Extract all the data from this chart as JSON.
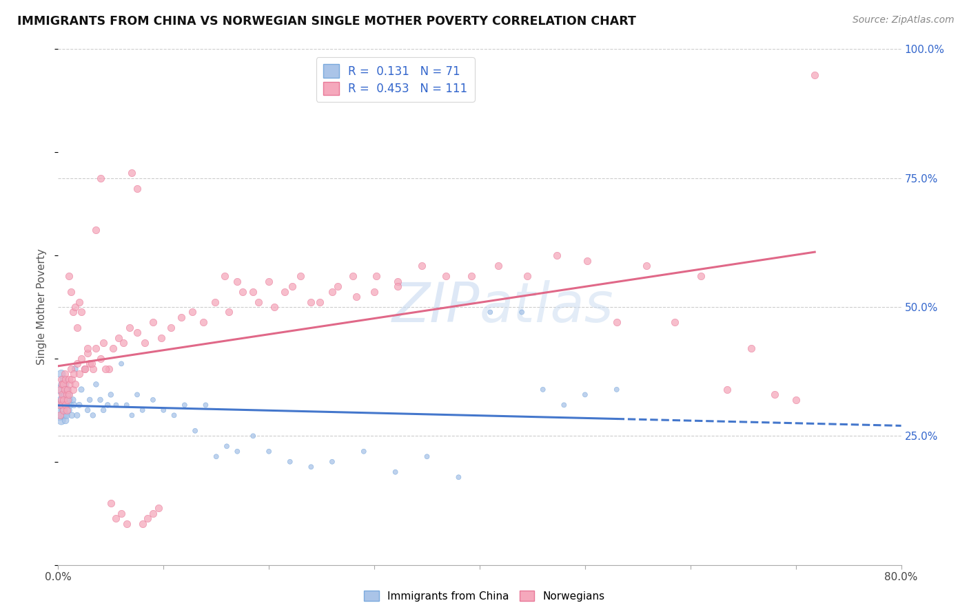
{
  "title": "IMMIGRANTS FROM CHINA VS NORWEGIAN SINGLE MOTHER POVERTY CORRELATION CHART",
  "source": "Source: ZipAtlas.com",
  "ylabel": "Single Mother Poverty",
  "legend_label1": "Immigrants from China",
  "legend_label2": "Norwegians",
  "r1": 0.131,
  "n1": 71,
  "r2": 0.453,
  "n2": 111,
  "color_china_fill": "#aac4e8",
  "color_china_edge": "#7aaadd",
  "color_norway_fill": "#f5a8bc",
  "color_norway_edge": "#e87898",
  "color_china_line": "#4477cc",
  "color_norway_line": "#e06888",
  "color_blue_text": "#3366cc",
  "xlim": [
    0.0,
    0.8
  ],
  "ylim": [
    0.0,
    1.0
  ],
  "china_x": [
    0.001,
    0.002,
    0.002,
    0.003,
    0.003,
    0.003,
    0.004,
    0.004,
    0.004,
    0.005,
    0.005,
    0.005,
    0.006,
    0.006,
    0.007,
    0.007,
    0.007,
    0.008,
    0.008,
    0.009,
    0.009,
    0.01,
    0.01,
    0.011,
    0.012,
    0.013,
    0.014,
    0.015,
    0.016,
    0.018,
    0.02,
    0.022,
    0.025,
    0.028,
    0.03,
    0.033,
    0.036,
    0.04,
    0.043,
    0.047,
    0.05,
    0.055,
    0.06,
    0.065,
    0.07,
    0.075,
    0.08,
    0.09,
    0.1,
    0.11,
    0.12,
    0.13,
    0.14,
    0.15,
    0.16,
    0.17,
    0.185,
    0.2,
    0.22,
    0.24,
    0.26,
    0.29,
    0.32,
    0.35,
    0.38,
    0.41,
    0.44,
    0.46,
    0.48,
    0.5,
    0.53
  ],
  "china_y": [
    0.29,
    0.34,
    0.31,
    0.28,
    0.37,
    0.32,
    0.29,
    0.35,
    0.31,
    0.33,
    0.3,
    0.36,
    0.29,
    0.33,
    0.31,
    0.35,
    0.28,
    0.32,
    0.29,
    0.31,
    0.34,
    0.3,
    0.33,
    0.32,
    0.31,
    0.29,
    0.32,
    0.31,
    0.38,
    0.29,
    0.31,
    0.34,
    0.38,
    0.3,
    0.32,
    0.29,
    0.35,
    0.32,
    0.3,
    0.31,
    0.33,
    0.31,
    0.39,
    0.31,
    0.29,
    0.33,
    0.3,
    0.32,
    0.3,
    0.29,
    0.31,
    0.26,
    0.31,
    0.21,
    0.23,
    0.22,
    0.25,
    0.22,
    0.2,
    0.19,
    0.2,
    0.22,
    0.18,
    0.21,
    0.17,
    0.49,
    0.49,
    0.34,
    0.31,
    0.33,
    0.34
  ],
  "china_sizes": [
    120,
    100,
    90,
    80,
    75,
    70,
    70,
    65,
    65,
    60,
    60,
    55,
    55,
    55,
    50,
    50,
    50,
    50,
    50,
    45,
    45,
    45,
    45,
    40,
    40,
    40,
    40,
    40,
    40,
    35,
    35,
    35,
    35,
    30,
    30,
    30,
    30,
    30,
    30,
    30,
    30,
    25,
    25,
    25,
    25,
    25,
    25,
    25,
    25,
    25,
    25,
    25,
    25,
    25,
    25,
    25,
    25,
    25,
    25,
    25,
    25,
    25,
    25,
    25,
    25,
    25,
    25,
    25,
    25,
    25,
    25
  ],
  "norway_x": [
    0.001,
    0.002,
    0.002,
    0.003,
    0.003,
    0.004,
    0.004,
    0.004,
    0.005,
    0.005,
    0.005,
    0.006,
    0.006,
    0.007,
    0.007,
    0.008,
    0.008,
    0.009,
    0.009,
    0.01,
    0.01,
    0.011,
    0.012,
    0.013,
    0.014,
    0.015,
    0.016,
    0.018,
    0.02,
    0.022,
    0.025,
    0.028,
    0.03,
    0.033,
    0.036,
    0.04,
    0.043,
    0.048,
    0.052,
    0.057,
    0.062,
    0.068,
    0.075,
    0.082,
    0.09,
    0.098,
    0.107,
    0.117,
    0.127,
    0.138,
    0.149,
    0.162,
    0.175,
    0.19,
    0.205,
    0.222,
    0.24,
    0.26,
    0.28,
    0.3,
    0.322,
    0.345,
    0.368,
    0.392,
    0.418,
    0.445,
    0.473,
    0.502,
    0.53,
    0.558,
    0.585,
    0.61,
    0.635,
    0.658,
    0.68,
    0.7,
    0.718,
    0.158,
    0.17,
    0.185,
    0.2,
    0.215,
    0.23,
    0.248,
    0.265,
    0.283,
    0.302,
    0.322,
    0.01,
    0.012,
    0.014,
    0.016,
    0.018,
    0.02,
    0.022,
    0.025,
    0.028,
    0.032,
    0.036,
    0.04,
    0.045,
    0.05,
    0.055,
    0.06,
    0.065,
    0.07,
    0.075,
    0.08,
    0.085,
    0.09,
    0.095
  ],
  "norway_y": [
    0.31,
    0.34,
    0.29,
    0.36,
    0.32,
    0.35,
    0.31,
    0.33,
    0.3,
    0.35,
    0.32,
    0.37,
    0.34,
    0.31,
    0.36,
    0.33,
    0.3,
    0.34,
    0.32,
    0.36,
    0.33,
    0.35,
    0.38,
    0.36,
    0.34,
    0.37,
    0.35,
    0.39,
    0.37,
    0.4,
    0.38,
    0.41,
    0.39,
    0.38,
    0.42,
    0.4,
    0.43,
    0.38,
    0.42,
    0.44,
    0.43,
    0.46,
    0.45,
    0.43,
    0.47,
    0.44,
    0.46,
    0.48,
    0.49,
    0.47,
    0.51,
    0.49,
    0.53,
    0.51,
    0.5,
    0.54,
    0.51,
    0.53,
    0.56,
    0.53,
    0.55,
    0.58,
    0.56,
    0.56,
    0.58,
    0.56,
    0.6,
    0.59,
    0.47,
    0.58,
    0.47,
    0.56,
    0.34,
    0.42,
    0.33,
    0.32,
    0.95,
    0.56,
    0.55,
    0.53,
    0.55,
    0.53,
    0.56,
    0.51,
    0.54,
    0.52,
    0.56,
    0.54,
    0.56,
    0.53,
    0.49,
    0.5,
    0.46,
    0.51,
    0.49,
    0.38,
    0.42,
    0.39,
    0.65,
    0.75,
    0.38,
    0.12,
    0.09,
    0.1,
    0.08,
    0.76,
    0.73,
    0.08,
    0.09,
    0.1,
    0.11
  ]
}
